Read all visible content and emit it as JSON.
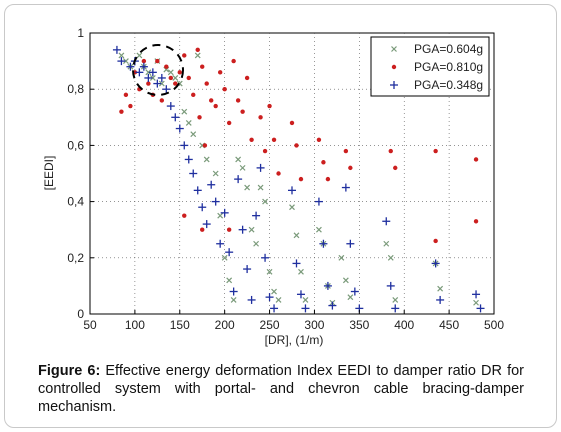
{
  "figure": {
    "label": "Figure 6:",
    "caption": "Effective energy deformation Index EEDI to damper ratio DR for controlled system with portal- and chevron cable bracing-damper mechanism."
  },
  "chart_data": {
    "type": "scatter",
    "title": "",
    "xlabel": "[DR], (1/m)",
    "ylabel": "[EEDI]",
    "xlim": [
      50,
      500
    ],
    "ylim": [
      0,
      1
    ],
    "xticks": [
      50,
      100,
      150,
      200,
      250,
      300,
      350,
      400,
      450,
      500
    ],
    "yticks": [
      0,
      0.2,
      0.4,
      0.6,
      0.8,
      1
    ],
    "yticklabels": [
      "0",
      "0,2",
      "0,4",
      "0,6",
      "0,8",
      "1"
    ],
    "grid": true,
    "legend_position": "top-right",
    "highlight": {
      "shape": "dashed-circle",
      "center": [
        125,
        0.87
      ]
    },
    "series": [
      {
        "name": "PGA=0.604g",
        "marker": "x",
        "color": "#7a9a7a",
        "points": [
          [
            85,
            0.92
          ],
          [
            90,
            0.9
          ],
          [
            95,
            0.88
          ],
          [
            105,
            0.92
          ],
          [
            110,
            0.88
          ],
          [
            115,
            0.86
          ],
          [
            120,
            0.84
          ],
          [
            125,
            0.9
          ],
          [
            130,
            0.82
          ],
          [
            135,
            0.87
          ],
          [
            140,
            0.86
          ],
          [
            145,
            0.84
          ],
          [
            150,
            0.82
          ],
          [
            155,
            0.72
          ],
          [
            160,
            0.68
          ],
          [
            165,
            0.64
          ],
          [
            170,
            0.92
          ],
          [
            175,
            0.6
          ],
          [
            180,
            0.55
          ],
          [
            190,
            0.5
          ],
          [
            195,
            0.35
          ],
          [
            200,
            0.2
          ],
          [
            205,
            0.12
          ],
          [
            210,
            0.05
          ],
          [
            215,
            0.55
          ],
          [
            220,
            0.52
          ],
          [
            225,
            0.45
          ],
          [
            230,
            0.3
          ],
          [
            235,
            0.25
          ],
          [
            240,
            0.45
          ],
          [
            245,
            0.4
          ],
          [
            250,
            0.15
          ],
          [
            255,
            0.08
          ],
          [
            260,
            0.05
          ],
          [
            275,
            0.38
          ],
          [
            280,
            0.28
          ],
          [
            285,
            0.15
          ],
          [
            290,
            0.05
          ],
          [
            305,
            0.3
          ],
          [
            310,
            0.25
          ],
          [
            315,
            0.1
          ],
          [
            320,
            0.04
          ],
          [
            330,
            0.2
          ],
          [
            335,
            0.12
          ],
          [
            340,
            0.06
          ],
          [
            380,
            0.25
          ],
          [
            385,
            0.2
          ],
          [
            390,
            0.05
          ],
          [
            435,
            0.18
          ],
          [
            440,
            0.09
          ],
          [
            480,
            0.04
          ]
        ]
      },
      {
        "name": "PGA=0.810g",
        "marker": "dot",
        "color": "#cc1f1f",
        "points": [
          [
            85,
            0.72
          ],
          [
            90,
            0.78
          ],
          [
            95,
            0.74
          ],
          [
            100,
            0.86
          ],
          [
            105,
            0.8
          ],
          [
            110,
            0.9
          ],
          [
            115,
            0.82
          ],
          [
            120,
            0.78
          ],
          [
            125,
            0.9
          ],
          [
            130,
            0.76
          ],
          [
            135,
            0.88
          ],
          [
            140,
            0.84
          ],
          [
            145,
            0.82
          ],
          [
            150,
            0.86
          ],
          [
            155,
            0.92
          ],
          [
            160,
            0.84
          ],
          [
            165,
            0.78
          ],
          [
            170,
            0.94
          ],
          [
            172,
            0.7
          ],
          [
            175,
            0.88
          ],
          [
            178,
            0.6
          ],
          [
            180,
            0.82
          ],
          [
            185,
            0.76
          ],
          [
            190,
            0.74
          ],
          [
            195,
            0.86
          ],
          [
            200,
            0.8
          ],
          [
            205,
            0.68
          ],
          [
            210,
            0.9
          ],
          [
            215,
            0.76
          ],
          [
            220,
            0.72
          ],
          [
            225,
            0.84
          ],
          [
            230,
            0.62
          ],
          [
            240,
            0.7
          ],
          [
            245,
            0.58
          ],
          [
            250,
            0.74
          ],
          [
            255,
            0.62
          ],
          [
            260,
            0.5
          ],
          [
            275,
            0.68
          ],
          [
            280,
            0.6
          ],
          [
            285,
            0.48
          ],
          [
            305,
            0.62
          ],
          [
            310,
            0.54
          ],
          [
            315,
            0.48
          ],
          [
            335,
            0.58
          ],
          [
            340,
            0.52
          ],
          [
            385,
            0.58
          ],
          [
            390,
            0.52
          ],
          [
            435,
            0.58
          ],
          [
            435,
            0.26
          ],
          [
            480,
            0.55
          ],
          [
            480,
            0.33
          ],
          [
            155,
            0.35
          ],
          [
            175,
            0.3
          ],
          [
            205,
            0.3
          ]
        ]
      },
      {
        "name": "PGA=0.348g",
        "marker": "+",
        "color": "#1f2f9f",
        "points": [
          [
            80,
            0.94
          ],
          [
            85,
            0.9
          ],
          [
            95,
            0.88
          ],
          [
            100,
            0.9
          ],
          [
            105,
            0.86
          ],
          [
            110,
            0.88
          ],
          [
            115,
            0.84
          ],
          [
            120,
            0.86
          ],
          [
            125,
            0.82
          ],
          [
            130,
            0.84
          ],
          [
            135,
            0.8
          ],
          [
            140,
            0.74
          ],
          [
            145,
            0.7
          ],
          [
            150,
            0.66
          ],
          [
            155,
            0.6
          ],
          [
            160,
            0.55
          ],
          [
            165,
            0.5
          ],
          [
            170,
            0.44
          ],
          [
            175,
            0.38
          ],
          [
            180,
            0.32
          ],
          [
            185,
            0.46
          ],
          [
            190,
            0.4
          ],
          [
            195,
            0.25
          ],
          [
            200,
            0.36
          ],
          [
            205,
            0.22
          ],
          [
            210,
            0.08
          ],
          [
            215,
            0.48
          ],
          [
            220,
            0.3
          ],
          [
            225,
            0.16
          ],
          [
            230,
            0.05
          ],
          [
            235,
            0.35
          ],
          [
            240,
            0.52
          ],
          [
            245,
            0.2
          ],
          [
            250,
            0.06
          ],
          [
            255,
            0.02
          ],
          [
            275,
            0.44
          ],
          [
            280,
            0.18
          ],
          [
            285,
            0.07
          ],
          [
            290,
            0.02
          ],
          [
            305,
            0.4
          ],
          [
            310,
            0.25
          ],
          [
            315,
            0.1
          ],
          [
            320,
            0.03
          ],
          [
            335,
            0.45
          ],
          [
            340,
            0.25
          ],
          [
            345,
            0.08
          ],
          [
            350,
            0.02
          ],
          [
            380,
            0.33
          ],
          [
            385,
            0.1
          ],
          [
            390,
            0.02
          ],
          [
            435,
            0.18
          ],
          [
            440,
            0.05
          ],
          [
            480,
            0.07
          ],
          [
            485,
            0.02
          ]
        ]
      }
    ]
  }
}
